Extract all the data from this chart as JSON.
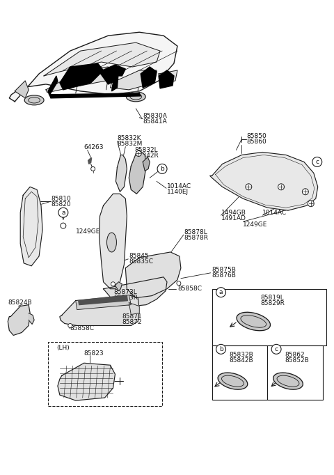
{
  "bg_color": "#ffffff",
  "line_color": "#1a1a1a",
  "text_color": "#111111",
  "fig_width": 4.8,
  "fig_height": 6.82,
  "dpi": 100,
  "labels": {
    "car_top": [
      "85830A",
      "85841A"
    ],
    "b_pillar_top": [
      "85832K",
      "85832M"
    ],
    "b_pillar_bot": [
      "85832L",
      "85842R"
    ],
    "a_pillar": [
      "85810",
      "85820"
    ],
    "c_pillar": [
      "85878L",
      "85878R"
    ],
    "c_pillar2": [
      "85845",
      "85835C"
    ],
    "cargo_strip": [
      "85873L",
      "85873R"
    ],
    "cargo_main": [
      "85871",
      "85872"
    ],
    "cargo_side": "85824B",
    "clip1": "64263",
    "clip2": "1014AC",
    "clip3": "1140EJ",
    "clip4": "1249GE",
    "clip5": "85858C",
    "clip6": "85875B",
    "clip7": "85876B",
    "rr_panel": [
      "85850",
      "85860"
    ],
    "rr_clips": [
      "1494GB",
      "1491AD",
      "1014AC",
      "1249GE"
    ],
    "lh_label": "(LH)",
    "lh_part": "85823",
    "box_a": [
      "85819L",
      "85829R"
    ],
    "box_b": [
      "85832B",
      "85842B"
    ],
    "box_c": [
      "85862",
      "85852B"
    ]
  }
}
